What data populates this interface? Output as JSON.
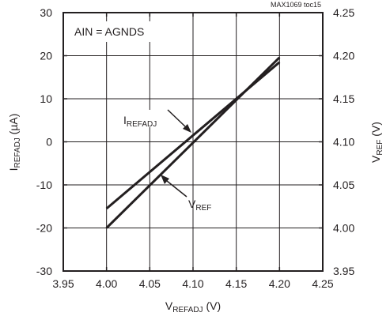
{
  "chart_data": {
    "type": "line",
    "corner_note": "MAX1069 toc15",
    "annotation": "AIN = AGNDS",
    "xlabel": {
      "main": "V",
      "sub": "REFADJ",
      "unit": " (V)"
    },
    "ylabel_left": {
      "main": "I",
      "sub": "REFADJ",
      "unit": " (µA)"
    },
    "ylabel_right": {
      "main": "V",
      "sub": "REF",
      "unit": " (V)"
    },
    "xlim": [
      3.95,
      4.25
    ],
    "ylim_left": [
      -30,
      30
    ],
    "ylim_right": [
      3.95,
      4.25
    ],
    "x_ticks": [
      "3.95",
      "4.00",
      "4.05",
      "4.10",
      "4.15",
      "4.20",
      "4.25"
    ],
    "y_left_ticks": [
      "-30",
      "-20",
      "-10",
      "0",
      "10",
      "20",
      "30"
    ],
    "y_right_ticks": [
      "3.95",
      "4.00",
      "4.05",
      "4.10",
      "4.15",
      "4.20",
      "4.25"
    ],
    "grid": true,
    "series": [
      {
        "name": "I",
        "name_sub": "REFADJ",
        "axis": "left",
        "x": [
          4.0,
          4.2
        ],
        "y": [
          -15.5,
          18.5
        ]
      },
      {
        "name": "V",
        "name_sub": "REF",
        "axis": "right",
        "x": [
          4.0,
          4.2
        ],
        "y": [
          4.0,
          4.198
        ]
      }
    ],
    "line_color": "#231f20",
    "grid_color": "#231f20"
  }
}
